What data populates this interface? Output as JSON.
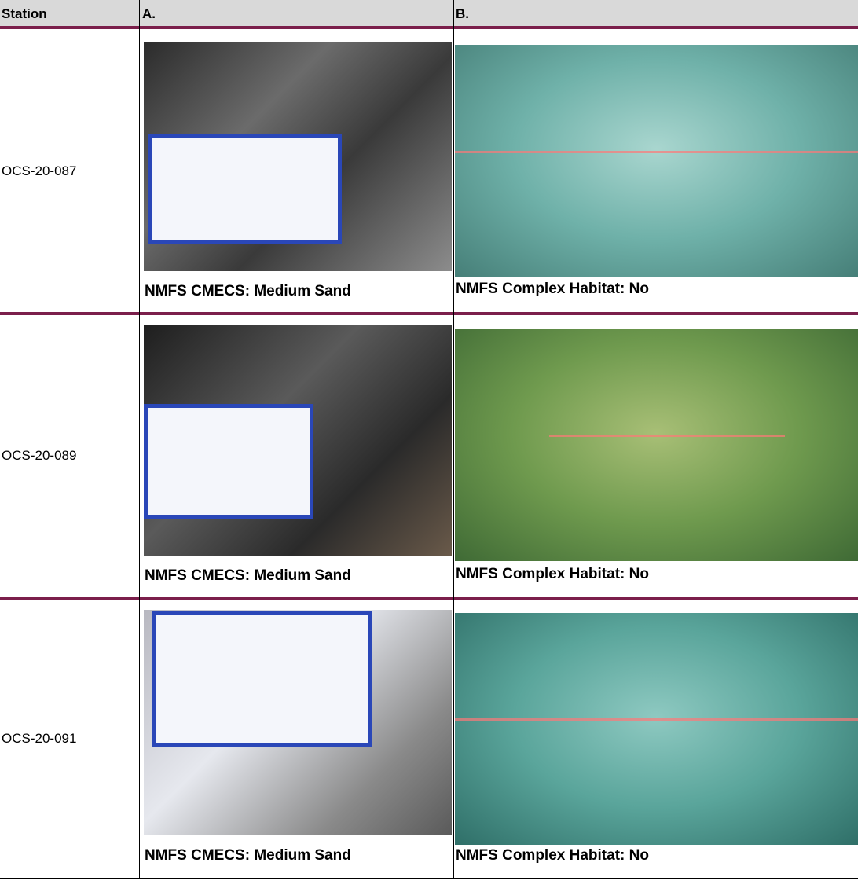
{
  "table": {
    "header": [
      "Station",
      "A.",
      "B."
    ],
    "rows": [
      {
        "station": "OCS-20-087",
        "caption_a": "NMFS CMECS:  Medium Sand",
        "caption_b": "NMFS Complex Habitat:  No"
      },
      {
        "station": "OCS-20-089",
        "caption_a": "NMFS CMECS:  Medium Sand",
        "caption_b": "NMFS Complex Habitat:  No"
      },
      {
        "station": "OCS-20-091",
        "caption_a": "NMFS CMECS:  Medium Sand",
        "caption_b": "NMFS Complex Habitat:  No"
      }
    ]
  }
}
